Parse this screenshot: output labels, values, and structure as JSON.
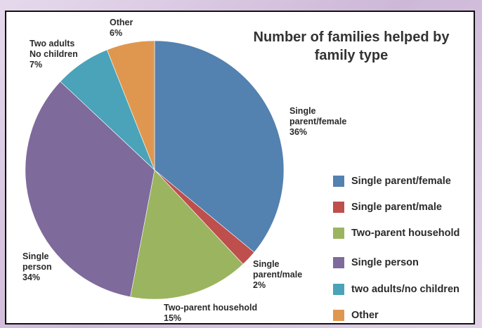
{
  "chart_data": {
    "type": "pie",
    "title_lines": [
      "Number of families helped by",
      "family type"
    ],
    "slices": [
      {
        "legend": "Single parent/female",
        "label_lines": [
          "Single",
          "parent/female",
          "36%"
        ],
        "value": 36,
        "color": "#5381b0"
      },
      {
        "legend": "Single parent/male",
        "label_lines": [
          "Single",
          "parent/male",
          "2%"
        ],
        "value": 2,
        "color": "#be4f4c"
      },
      {
        "legend": "Two-parent household",
        "label_lines": [
          "Two-parent household",
          "15%"
        ],
        "value": 15,
        "color": "#9bb45f"
      },
      {
        "legend": "Single person",
        "label_lines": [
          "Single",
          "person",
          "34%"
        ],
        "value": 34,
        "color": "#7e6a9b"
      },
      {
        "legend": "two adults/no children",
        "label_lines": [
          "Two adults",
          "No children",
          "7%"
        ],
        "value": 7,
        "color": "#4aa3b8"
      },
      {
        "legend": "Other",
        "label_lines": [
          "Other",
          "6%"
        ],
        "value": 6,
        "color": "#df974f"
      }
    ],
    "legend_placement": "right"
  }
}
